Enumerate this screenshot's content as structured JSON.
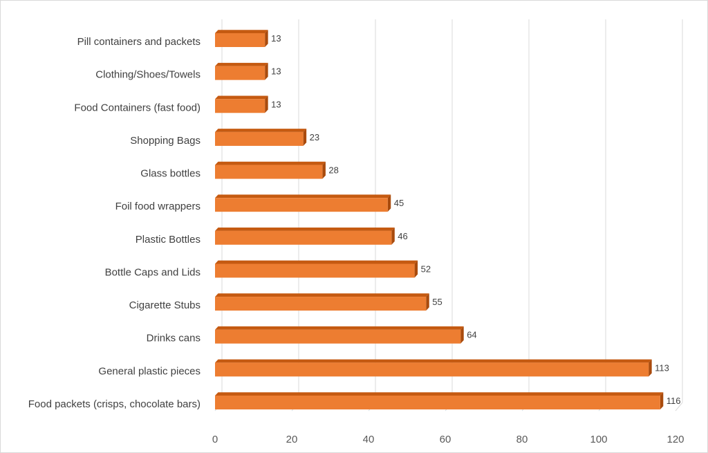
{
  "chart_data": {
    "type": "bar",
    "orientation": "horizontal",
    "style": "3d",
    "title": "",
    "xlabel": "",
    "ylabel": "",
    "categories": [
      "Pill containers and packets",
      "Clothing/Shoes/Towels",
      "Food Containers (fast food)",
      "Shopping Bags",
      "Glass bottles",
      "Foil food wrappers",
      "Plastic Bottles",
      "Bottle Caps and Lids",
      "Cigarette Stubs",
      "Drinks cans",
      "General plastic pieces",
      "Food packets (crisps, chocolate bars)"
    ],
    "values": [
      13,
      13,
      13,
      23,
      28,
      45,
      46,
      52,
      55,
      64,
      113,
      116
    ],
    "xlim": [
      0,
      120
    ],
    "xticks": [
      0,
      20,
      40,
      60,
      80,
      100,
      120
    ],
    "grid": true,
    "legend": "none",
    "data_labels": true,
    "colors": {
      "bar_front": "#ed7d31",
      "bar_top": "#c55a11",
      "bar_side": "#a94b0d",
      "grid": "#d9d9d9",
      "text": "#404040"
    }
  }
}
